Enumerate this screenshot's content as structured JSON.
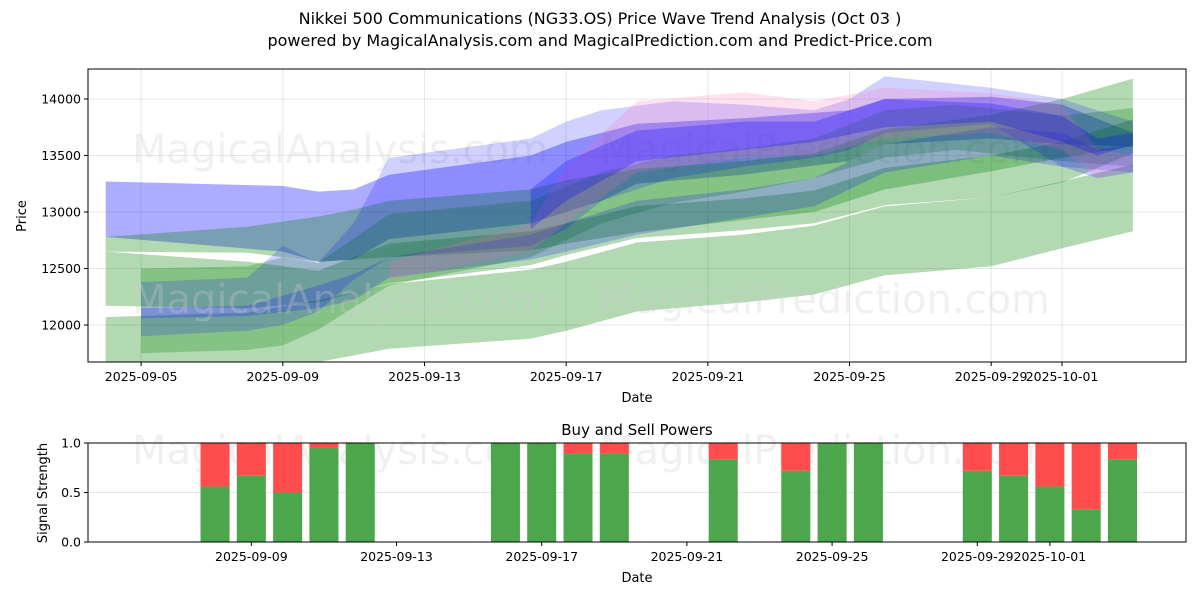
{
  "header": {
    "title": "Nikkei 500 Communications (NG33.OS) Price Wave Trend Analysis (Oct 03 )",
    "subtitle": "powered by MagicalAnalysis.com and MagicalPrediction.com and Predict-Price.com"
  },
  "watermarks": [
    "MagicalAnalysis.com",
    "MagicalPrediction.com"
  ],
  "colors": {
    "blue": "#0000ff",
    "green": "#008000",
    "red": "#ff0000",
    "pink": "#ff69b4",
    "buy": "#4ca64c",
    "sell": "#ff4c4c"
  },
  "chart_data": [
    {
      "type": "area",
      "title": "",
      "xlabel": "Date",
      "ylabel": "Price",
      "xlim": [
        "2025-09-03T12:00",
        "2025-10-04T12:00"
      ],
      "ylim": [
        11673,
        14265
      ],
      "yticks": [
        12000,
        12500,
        13000,
        13500,
        14000
      ],
      "xticks": [
        "2025-09-05",
        "2025-09-09",
        "2025-09-13",
        "2025-09-17",
        "2025-09-21",
        "2025-09-25",
        "2025-09-29",
        "2025-10-01"
      ],
      "grid": true,
      "series": [
        {
          "name": "blue-band-1",
          "color": "blue",
          "opacity": 0.32,
          "x": [
            "2025-09-04",
            "2025-09-09",
            "2025-09-10",
            "2025-09-11",
            "2025-09-12",
            "2025-09-16",
            "2025-09-17",
            "2025-09-18",
            "2025-09-19",
            "2025-09-22",
            "2025-09-25",
            "2025-09-26",
            "2025-09-29",
            "2025-10-01",
            "2025-10-03"
          ],
          "upper": [
            13270,
            13230,
            13180,
            13200,
            13330,
            13500,
            13620,
            13700,
            13780,
            13830,
            13900,
            14000,
            14020,
            13950,
            13700
          ],
          "lower": [
            12780,
            12650,
            12560,
            12580,
            12760,
            12900,
            13000,
            13100,
            13250,
            13330,
            13450,
            13600,
            13650,
            13600,
            13580
          ]
        },
        {
          "name": "green-band-1",
          "color": "green",
          "opacity": 0.3,
          "x": [
            "2025-09-04",
            "2025-09-08",
            "2025-09-10",
            "2025-09-11",
            "2025-09-12",
            "2025-09-16",
            "2025-09-17",
            "2025-09-19",
            "2025-09-22",
            "2025-09-24",
            "2025-09-26",
            "2025-09-29",
            "2025-10-01",
            "2025-10-03"
          ],
          "upper": [
            12780,
            12870,
            12960,
            13020,
            13100,
            13200,
            13280,
            13380,
            13450,
            13520,
            13730,
            13860,
            14000,
            14180
          ],
          "lower": [
            12650,
            12640,
            12560,
            12580,
            12600,
            12660,
            12720,
            12820,
            12930,
            13000,
            13200,
            13360,
            13480,
            13580
          ]
        },
        {
          "name": "green-band-2",
          "color": "green",
          "opacity": 0.3,
          "x": [
            "2025-09-04",
            "2025-09-08",
            "2025-09-10",
            "2025-09-12",
            "2025-09-16",
            "2025-09-17",
            "2025-09-19",
            "2025-09-22",
            "2025-09-24",
            "2025-09-26",
            "2025-09-29",
            "2025-10-01",
            "2025-10-03"
          ],
          "upper": [
            12650,
            12560,
            12480,
            12720,
            12830,
            12900,
            13050,
            13120,
            13190,
            13390,
            13500,
            13620,
            13820
          ],
          "lower": [
            12170,
            12150,
            12200,
            12370,
            12530,
            12620,
            12770,
            12840,
            12900,
            13060,
            13130,
            13260,
            13520
          ]
        },
        {
          "name": "green-band-3",
          "color": "green",
          "opacity": 0.3,
          "x": [
            "2025-09-04",
            "2025-09-08",
            "2025-09-10",
            "2025-09-12",
            "2025-09-16",
            "2025-09-17",
            "2025-09-19",
            "2025-09-22",
            "2025-09-24",
            "2025-09-26",
            "2025-09-29",
            "2025-10-01",
            "2025-10-03"
          ],
          "upper": [
            12070,
            12110,
            12220,
            12360,
            12490,
            12560,
            12730,
            12800,
            12880,
            13050,
            13130,
            13270,
            13420
          ],
          "lower": [
            11673,
            11673,
            11673,
            11790,
            11880,
            11950,
            12120,
            12200,
            12270,
            12440,
            12520,
            12680,
            12830
          ]
        },
        {
          "name": "teal-band-1",
          "color": "green",
          "opacity": 0.25,
          "x": [
            "2025-09-05",
            "2025-09-08",
            "2025-09-09",
            "2025-09-10",
            "2025-09-12",
            "2025-09-16",
            "2025-09-18",
            "2025-09-20",
            "2025-09-22",
            "2025-09-24",
            "2025-09-26",
            "2025-09-28",
            "2025-10-01",
            "2025-10-03"
          ],
          "upper": [
            12500,
            12520,
            12600,
            12550,
            12980,
            13100,
            13350,
            13500,
            13560,
            13650,
            13900,
            13950,
            13850,
            13920
          ],
          "lower": [
            11750,
            11780,
            11820,
            11960,
            12350,
            12600,
            12900,
            13080,
            13180,
            13300,
            13480,
            13550,
            13450,
            13400
          ]
        },
        {
          "name": "blue-band-2",
          "color": "blue",
          "opacity": 0.18,
          "x": [
            "2025-09-05",
            "2025-09-08",
            "2025-09-09",
            "2025-09-10",
            "2025-09-11",
            "2025-09-12",
            "2025-09-16",
            "2025-09-17",
            "2025-09-18",
            "2025-09-20",
            "2025-09-22",
            "2025-09-24",
            "2025-09-25",
            "2025-09-26",
            "2025-09-29",
            "2025-10-01",
            "2025-10-03"
          ],
          "upper": [
            12380,
            12420,
            12700,
            12550,
            12900,
            13480,
            13650,
            13800,
            13900,
            13980,
            13950,
            13900,
            14000,
            14200,
            14100,
            14000,
            13800
          ],
          "lower": [
            11900,
            11950,
            12000,
            12120,
            12400,
            12600,
            12700,
            12850,
            13100,
            13300,
            13400,
            13480,
            13550,
            13700,
            13780,
            13400,
            13350
          ]
        },
        {
          "name": "blue-band-3",
          "color": "blue",
          "opacity": 0.2,
          "x": [
            "2025-09-05",
            "2025-09-08",
            "2025-09-10",
            "2025-09-11",
            "2025-09-12",
            "2025-09-16",
            "2025-09-17",
            "2025-09-19",
            "2025-09-22",
            "2025-09-24",
            "2025-09-26",
            "2025-09-29",
            "2025-10-01",
            "2025-10-02",
            "2025-10-03"
          ],
          "upper": [
            12150,
            12170,
            12350,
            12450,
            12600,
            12800,
            12900,
            13100,
            13200,
            13300,
            13600,
            13750,
            13700,
            13550,
            13600
          ],
          "lower": [
            12060,
            12080,
            12150,
            12220,
            12420,
            12580,
            12650,
            12800,
            12950,
            13050,
            13350,
            13500,
            13400,
            13300,
            13350
          ]
        },
        {
          "name": "pink-band-1",
          "color": "pink",
          "opacity": 0.2,
          "x": [
            "2025-09-12",
            "2025-09-16",
            "2025-09-17",
            "2025-09-19",
            "2025-09-22",
            "2025-09-24",
            "2025-09-26",
            "2025-09-29",
            "2025-10-01",
            "2025-10-02",
            "2025-10-03"
          ],
          "upper": [
            12560,
            12900,
            13400,
            13980,
            14060,
            13980,
            14100,
            14050,
            13950,
            13550,
            13500
          ],
          "lower": [
            12400,
            12650,
            12900,
            13350,
            13480,
            13500,
            13650,
            13700,
            13550,
            13300,
            13380
          ]
        },
        {
          "name": "blue-band-4",
          "color": "blue",
          "opacity": 0.25,
          "x": [
            "2025-09-16",
            "2025-09-17",
            "2025-09-19",
            "2025-09-22",
            "2025-09-24",
            "2025-09-26",
            "2025-09-29",
            "2025-10-01",
            "2025-10-02",
            "2025-10-03"
          ],
          "upper": [
            13200,
            13450,
            13720,
            13800,
            13800,
            14000,
            13960,
            13850,
            13650,
            13700
          ],
          "lower": [
            12850,
            13100,
            13450,
            13550,
            13620,
            13750,
            13800,
            13620,
            13500,
            13600
          ]
        }
      ]
    },
    {
      "type": "bar",
      "title": "Buy and Sell Powers",
      "xlabel": "Date",
      "ylabel": "Signal Strength",
      "xlim": [
        "2025-09-04T12:00",
        "2025-10-04T18:00"
      ],
      "ylim": [
        0,
        1
      ],
      "yticks": [
        "0.0",
        "0.5",
        "1.0"
      ],
      "xticks": [
        "2025-09-09",
        "2025-09-13",
        "2025-09-17",
        "2025-09-21",
        "2025-09-25",
        "2025-09-29",
        "2025-10-01"
      ],
      "grid": true,
      "categories": [
        "2025-09-08",
        "2025-09-09",
        "2025-09-10",
        "2025-09-11",
        "2025-09-12",
        "2025-09-16",
        "2025-09-17",
        "2025-09-18",
        "2025-09-19",
        "2025-09-22",
        "2025-09-24",
        "2025-09-25",
        "2025-09-26",
        "2025-09-29",
        "2025-09-30",
        "2025-10-01",
        "2025-10-02",
        "2025-10-03"
      ],
      "series": [
        {
          "name": "Buy",
          "color": "buy",
          "values": [
            0.56,
            0.67,
            0.5,
            0.95,
            1.0,
            1.0,
            1.0,
            0.89,
            0.89,
            0.83,
            0.72,
            1.0,
            1.0,
            0.72,
            0.67,
            0.56,
            0.33,
            0.83
          ]
        },
        {
          "name": "Sell",
          "color": "sell",
          "values": [
            0.44,
            0.33,
            0.5,
            0.05,
            0.0,
            0.0,
            0.0,
            0.11,
            0.11,
            0.17,
            0.28,
            0.0,
            0.0,
            0.28,
            0.33,
            0.44,
            0.67,
            0.17
          ]
        }
      ]
    }
  ]
}
